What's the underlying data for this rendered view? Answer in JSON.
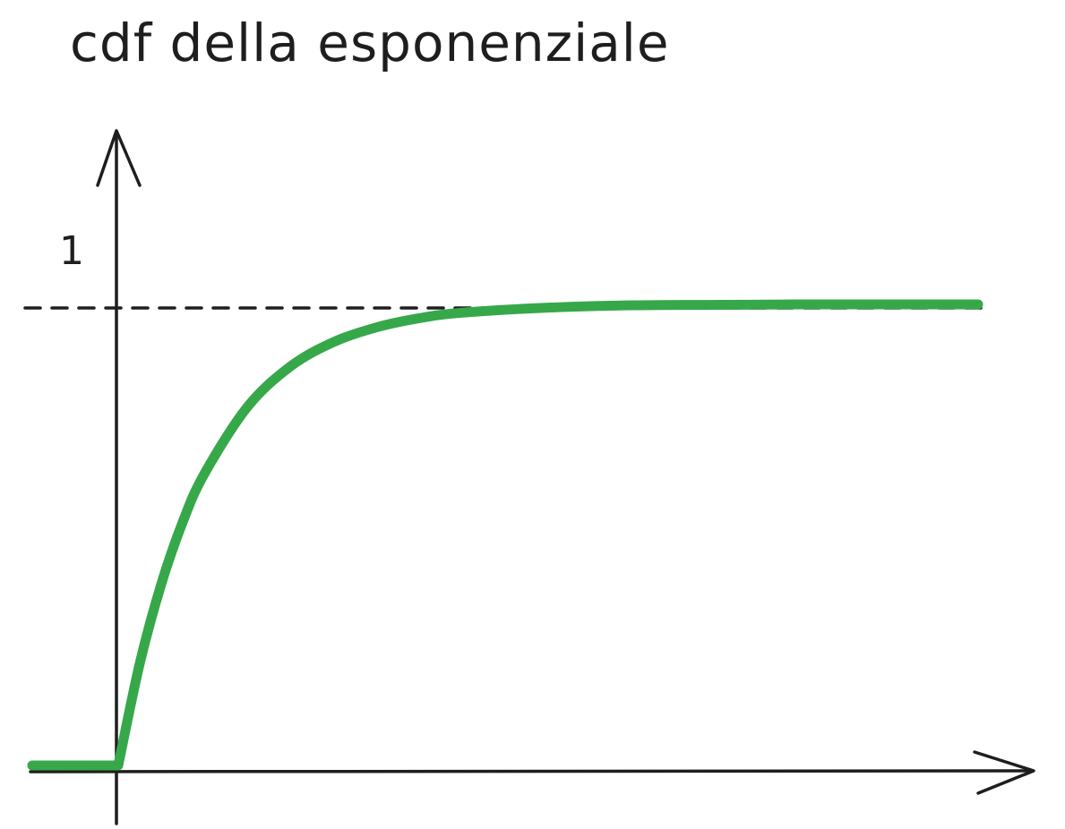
{
  "title": "cdf della esponenziale",
  "chart_data": {
    "type": "line",
    "title": "cdf della esponenziale",
    "xlabel": "",
    "ylabel": "",
    "grid": false,
    "ylim": [
      0,
      1.06
    ],
    "xlim": [
      -1,
      10
    ],
    "y_ticks": [
      {
        "value": 1,
        "label": "1"
      }
    ],
    "reference_lines": [
      {
        "axis": "y",
        "value": 1,
        "style": "dashed"
      }
    ],
    "series": [
      {
        "color": "#36a84a",
        "x": [
          -1,
          0,
          0.25,
          0.5,
          0.75,
          1,
          1.5,
          2,
          2.5,
          3,
          3.5,
          4,
          5,
          6,
          7,
          8,
          9,
          10
        ],
        "y": [
          0,
          0,
          0.221,
          0.393,
          0.528,
          0.632,
          0.777,
          0.865,
          0.918,
          0.95,
          0.97,
          0.982,
          0.993,
          0.998,
          0.999,
          1.0,
          1.0,
          1.0
        ]
      }
    ]
  },
  "colors": {
    "axis": "#1e1e1e",
    "curve": "#36a84a",
    "background": "#ffffff"
  }
}
